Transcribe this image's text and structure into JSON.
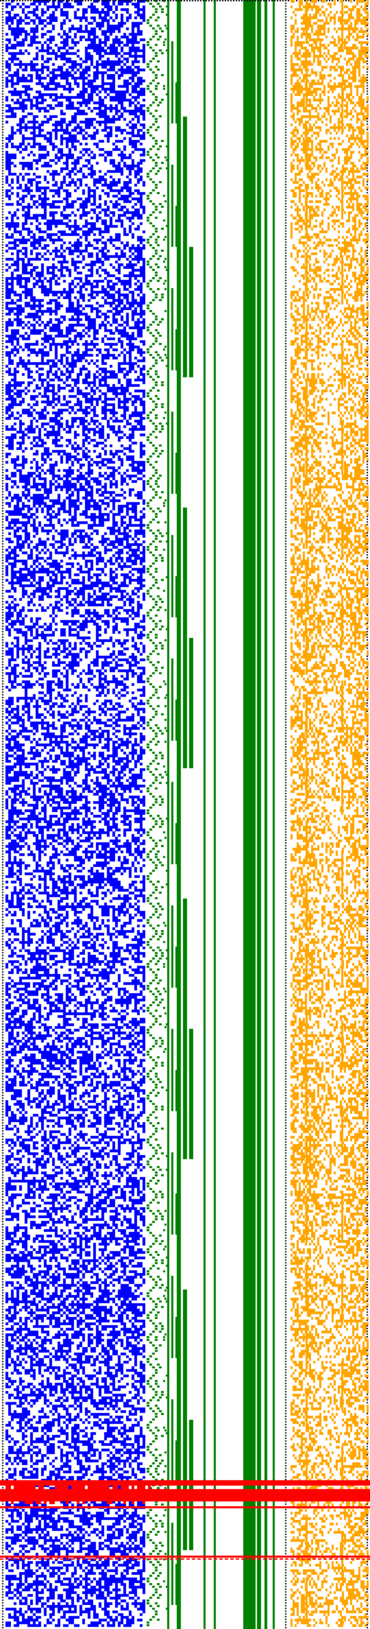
{
  "colors": {
    "background": "#ffffff",
    "bit_plane_a": "#0000ff",
    "bit_plane_b": "#008000",
    "bit_plane_c": "#ffa500",
    "marker": "#ff0000",
    "dotted_rule": "#000000"
  },
  "icons": {
    "left_rule": "dotted-rule-icon",
    "right_rule": "dotted-rule-icon"
  },
  "visualization": {
    "kind": "bitmap-pattern",
    "text": ""
  }
}
